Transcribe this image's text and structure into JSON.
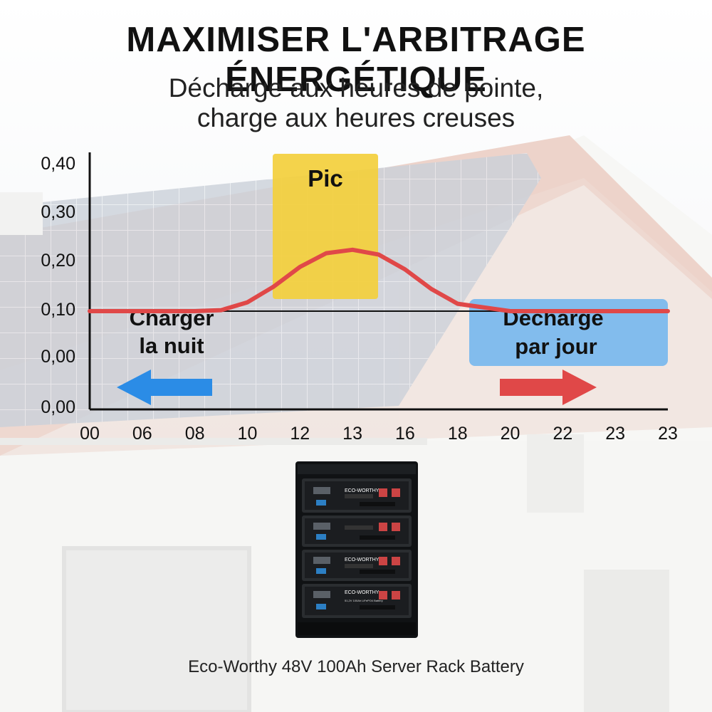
{
  "header": {
    "title": "MAXIMISER L'ARBITRAGE ÉNERGÉTIQUE",
    "subtitle_line1": "Décharge aux heures de pointe,",
    "subtitle_line2": "charge aux heures creuses"
  },
  "product": {
    "brand": "ECO-WORTHY",
    "module_label": "51,2V 100Ah LiFePO4 Battery",
    "caption": "Eco-Worthy 48V 100Ah Server Rack Battery"
  },
  "colors": {
    "curve": "#e04848",
    "peak_box": "#f3cf3c",
    "discharge_box": "#6fb4ee",
    "charge_arrow": "#2b8ce6",
    "discharge_arrow": "#e04848",
    "axis": "#111111"
  },
  "chart_data": {
    "type": "line",
    "title": "",
    "xlabel": "",
    "ylabel": "",
    "x_tick_labels": [
      "00",
      "06",
      "08",
      "10",
      "12",
      "13",
      "16",
      "18",
      "20",
      "22",
      "23",
      "23"
    ],
    "y_tick_labels": [
      "0,00",
      "0,00",
      "0,10",
      "0,20",
      "0,30",
      "0,40"
    ],
    "series": [
      {
        "x": [
          0,
          1,
          2,
          2.5,
          3,
          3.5,
          4,
          4.5,
          5,
          5.5,
          6,
          6.5,
          7,
          8,
          9,
          10,
          11
        ],
        "y": [
          2,
          2,
          2,
          2.02,
          2.18,
          2.5,
          2.9,
          3.18,
          3.25,
          3.15,
          2.85,
          2.45,
          2.15,
          2,
          2,
          2,
          2
        ]
      }
    ],
    "annotations": {
      "peak": "Pic",
      "charge_line1": "Charger",
      "charge_line2": "la nuit",
      "discharge_line1": "Décharge",
      "discharge_line2": "par jour"
    },
    "grid": false,
    "legend": "none"
  }
}
